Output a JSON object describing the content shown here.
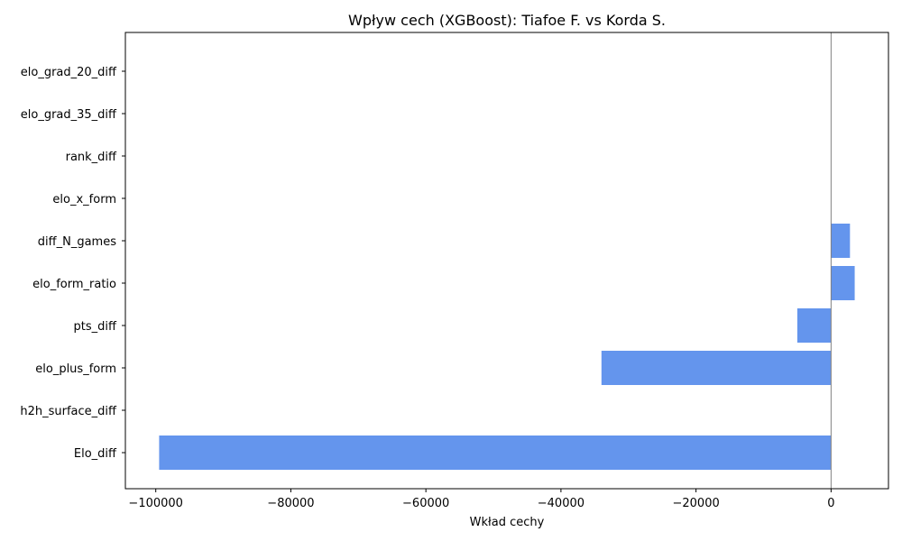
{
  "chart_data": {
    "type": "bar",
    "orientation": "horizontal",
    "title": "Wpływ cech (XGBoost): Tiafoe F. vs Korda S.",
    "xlabel": "Wkład cechy",
    "ylabel": "",
    "categories": [
      "elo_grad_20_diff",
      "elo_grad_35_diff",
      "rank_diff",
      "elo_x_form",
      "diff_N_games",
      "elo_form_ratio",
      "pts_diff",
      "elo_plus_form",
      "h2h_surface_diff",
      "Elo_diff"
    ],
    "values": [
      0,
      0,
      0,
      0,
      2800,
      3500,
      -5000,
      -34000,
      0,
      -99500
    ],
    "xlim": [
      -104500,
      8500
    ],
    "xticks": [
      -100000,
      -80000,
      -60000,
      -40000,
      -20000,
      0
    ],
    "xtick_labels": [
      "−100000",
      "−80000",
      "−60000",
      "−40000",
      "−20000",
      "0"
    ],
    "bar_color": "#6495ED",
    "zero_line": true,
    "grid": false
  }
}
